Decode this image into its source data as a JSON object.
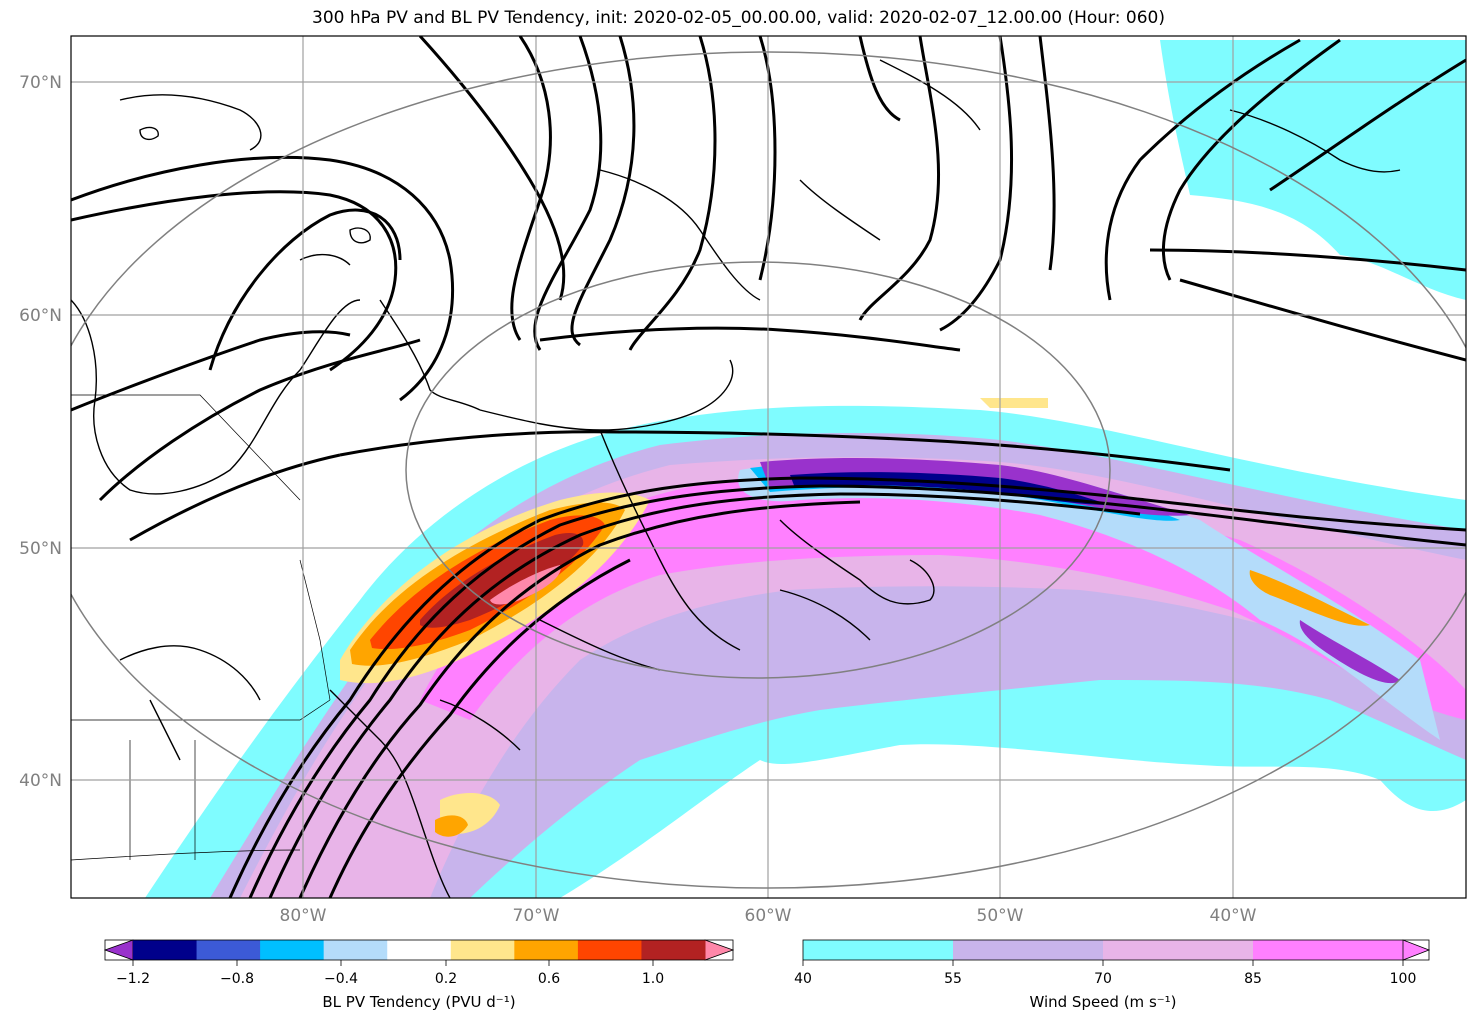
{
  "title": "300 hPa PV and BL PV Tendency, init: 2020-02-05_00.00.00, valid: 2020-02-07_12.00.00 (Hour: 060)",
  "map": {
    "lon_labels": [
      "80°W",
      "70°W",
      "60°W",
      "50°W",
      "40°W"
    ],
    "lat_labels": [
      "70°N",
      "60°N",
      "50°N",
      "40°N"
    ],
    "gridline_color": "#a0a0a0",
    "coastline_color": "#000000",
    "pv_contour_color": "#000000",
    "background": "#ffffff"
  },
  "colorbar_pv": {
    "title": "BL PV Tendency (PVU d⁻¹)",
    "tick_labels": [
      "−1.2",
      "−0.8",
      "−0.4",
      "0.2",
      "0.6",
      "1.0"
    ],
    "colors": [
      "#9932cc",
      "#00008b",
      "#3c5ad6",
      "#00bfff",
      "#b4dcfa",
      "#ffffff",
      "#ffe68c",
      "#ffa500",
      "#ff4500",
      "#b22222",
      "#ff88aa"
    ]
  },
  "colorbar_wind": {
    "title": "Wind Speed (m s⁻¹)",
    "tick_labels": [
      "40",
      "55",
      "70",
      "85",
      "100"
    ],
    "colors": [
      "#7ffcff",
      "#c8b4ec",
      "#e8b4e8",
      "#ff80ff"
    ]
  }
}
